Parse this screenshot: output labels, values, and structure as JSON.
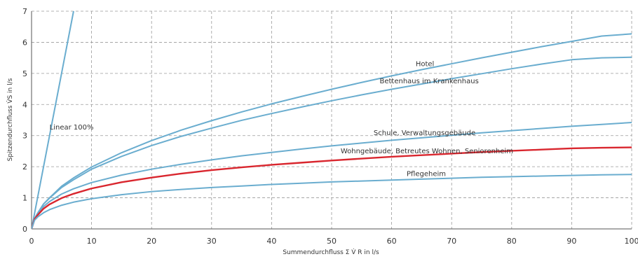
{
  "chart_data": {
    "type": "line",
    "xlabel": "Summendurchfluss Σ V̇ R in l/s",
    "ylabel": "Spitzendurchfluss V̇S in l/s",
    "xlim": [
      0,
      100
    ],
    "ylim": [
      0,
      7
    ],
    "x_ticks": [
      0,
      10,
      20,
      30,
      40,
      50,
      60,
      70,
      80,
      90,
      100
    ],
    "y_ticks": [
      0,
      1,
      2,
      3,
      4,
      5,
      6,
      7
    ],
    "grid": true,
    "legend": "none",
    "series": [
      {
        "name": "Linear 100%",
        "color": "#6aadcf",
        "label_at": [
          3,
          3.2
        ],
        "x": [
          0,
          7
        ],
        "y": [
          0,
          7
        ]
      },
      {
        "name": "Hotel",
        "color": "#6aadcf",
        "label_at": [
          64,
          5.23
        ],
        "x": [
          0,
          0.5,
          1,
          2,
          3,
          5,
          7,
          10,
          15,
          20,
          25,
          30,
          35,
          40,
          45,
          50,
          55,
          60,
          65,
          70,
          75,
          80,
          85,
          90,
          95,
          100
        ],
        "y": [
          0,
          0.33,
          0.5,
          0.8,
          1.0,
          1.37,
          1.64,
          1.99,
          2.45,
          2.84,
          3.18,
          3.48,
          3.76,
          4.02,
          4.26,
          4.49,
          4.71,
          4.92,
          5.12,
          5.31,
          5.5,
          5.68,
          5.86,
          6.03,
          6.2,
          6.27
        ]
      },
      {
        "name": "Bettenhaus im Krankenhaus",
        "color": "#6aadcf",
        "label_at": [
          58,
          4.68
        ],
        "x": [
          0,
          0.5,
          1,
          2,
          3,
          5,
          7,
          10,
          15,
          20,
          25,
          30,
          35,
          40,
          45,
          50,
          55,
          60,
          65,
          70,
          75,
          80,
          85,
          90,
          95,
          100
        ],
        "y": [
          0,
          0.33,
          0.5,
          0.8,
          0.99,
          1.33,
          1.58,
          1.92,
          2.33,
          2.68,
          2.98,
          3.24,
          3.49,
          3.71,
          3.92,
          4.12,
          4.31,
          4.49,
          4.66,
          4.83,
          4.99,
          5.15,
          5.3,
          5.44,
          5.5,
          5.52
        ]
      },
      {
        "name": "Schule, Verwaltungsgebäude",
        "color": "#6aadcf",
        "label_at": [
          57,
          3.02
        ],
        "x": [
          0,
          0.5,
          1,
          2,
          3,
          5,
          7,
          10,
          15,
          20,
          25,
          30,
          35,
          40,
          45,
          50,
          55,
          60,
          65,
          70,
          75,
          80,
          85,
          90,
          95,
          100
        ],
        "y": [
          0,
          0.33,
          0.48,
          0.72,
          0.88,
          1.12,
          1.29,
          1.49,
          1.73,
          1.92,
          2.08,
          2.22,
          2.35,
          2.46,
          2.57,
          2.67,
          2.76,
          2.85,
          2.93,
          3.01,
          3.09,
          3.16,
          3.23,
          3.3,
          3.36,
          3.42
        ]
      },
      {
        "name": "Wohngebäude, Betreutes Wohnen, Seniorenheim",
        "color": "#d9262e",
        "label_at": [
          51.5,
          2.43
        ],
        "x": [
          0,
          0.5,
          1,
          2,
          3,
          5,
          7,
          10,
          15,
          20,
          25,
          30,
          35,
          40,
          45,
          50,
          55,
          60,
          65,
          70,
          75,
          80,
          85,
          90,
          95,
          100
        ],
        "y": [
          0,
          0.31,
          0.44,
          0.65,
          0.79,
          0.99,
          1.13,
          1.3,
          1.5,
          1.65,
          1.78,
          1.89,
          1.98,
          2.06,
          2.13,
          2.2,
          2.26,
          2.32,
          2.37,
          2.42,
          2.47,
          2.51,
          2.55,
          2.59,
          2.61,
          2.62
        ]
      },
      {
        "name": "Pflegeheim",
        "color": "#6aadcf",
        "label_at": [
          62.5,
          1.7
        ],
        "x": [
          0,
          0.5,
          1,
          2,
          3,
          5,
          7,
          10,
          15,
          20,
          25,
          30,
          35,
          40,
          45,
          50,
          55,
          60,
          65,
          70,
          75,
          80,
          85,
          90,
          95,
          100
        ],
        "y": [
          0,
          0.28,
          0.38,
          0.52,
          0.62,
          0.76,
          0.86,
          0.97,
          1.1,
          1.2,
          1.27,
          1.33,
          1.38,
          1.43,
          1.47,
          1.51,
          1.54,
          1.57,
          1.6,
          1.63,
          1.66,
          1.68,
          1.7,
          1.72,
          1.74,
          1.75
        ]
      }
    ]
  }
}
